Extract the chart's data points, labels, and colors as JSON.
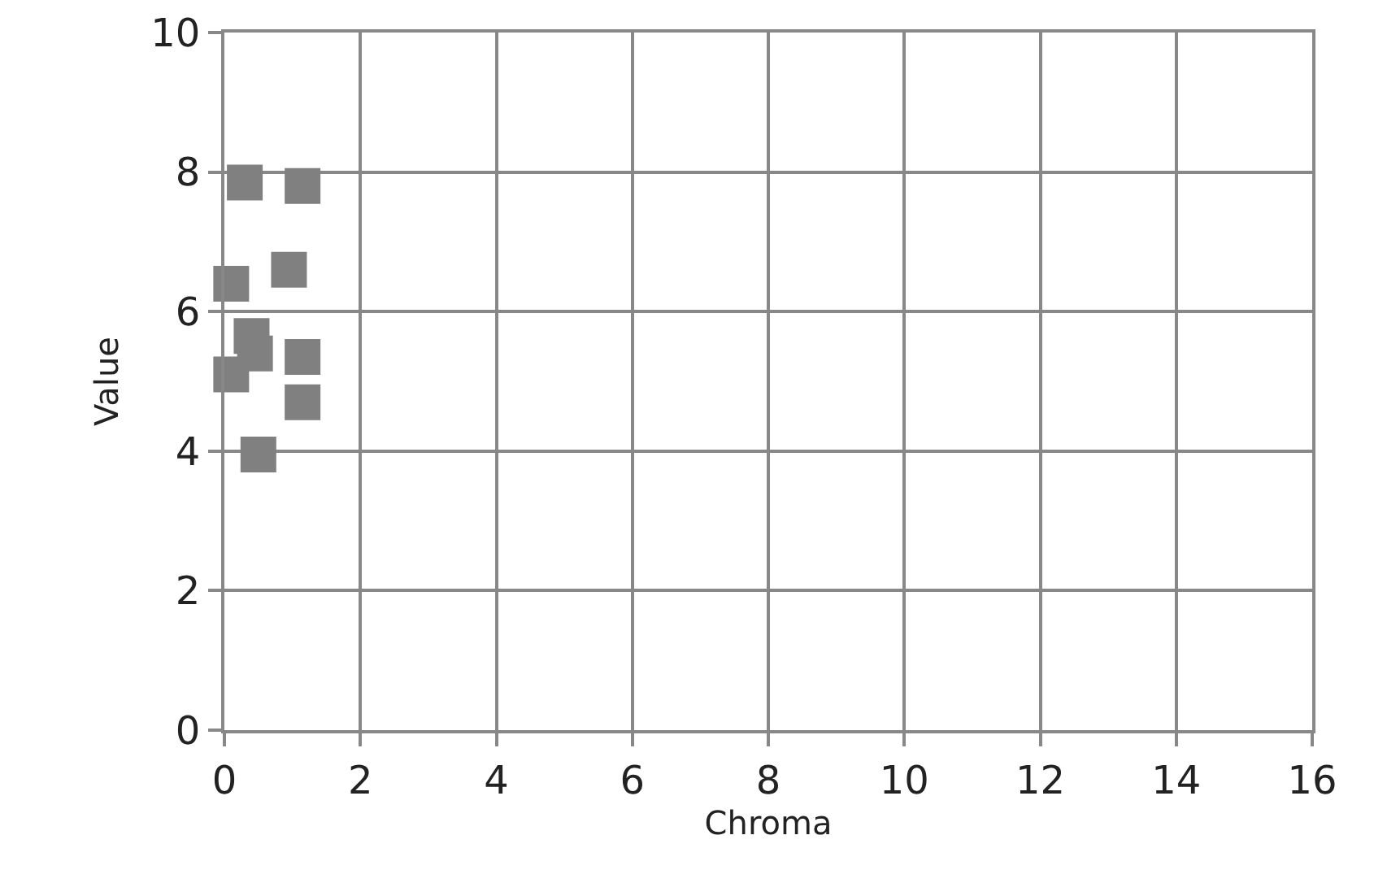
{
  "chart_data": {
    "type": "scatter",
    "xlabel": "Chroma",
    "ylabel": "Value",
    "x": [
      0.3,
      1.15,
      0.1,
      0.95,
      0.4,
      0.45,
      0.1,
      1.15,
      1.15,
      0.5
    ],
    "series": [
      {
        "color": "#808080",
        "values": [
          7.85,
          7.8,
          6.4,
          6.6,
          5.65,
          5.4,
          5.1,
          5.35,
          4.7,
          3.95
        ]
      }
    ],
    "xlim": [
      0,
      16
    ],
    "xticks": [
      0,
      2,
      4,
      6,
      8,
      10,
      12,
      14,
      16
    ],
    "ylim": [
      0,
      10
    ],
    "yticks": [
      0,
      2,
      4,
      6,
      8,
      10
    ],
    "grid": true,
    "marker": "square"
  }
}
